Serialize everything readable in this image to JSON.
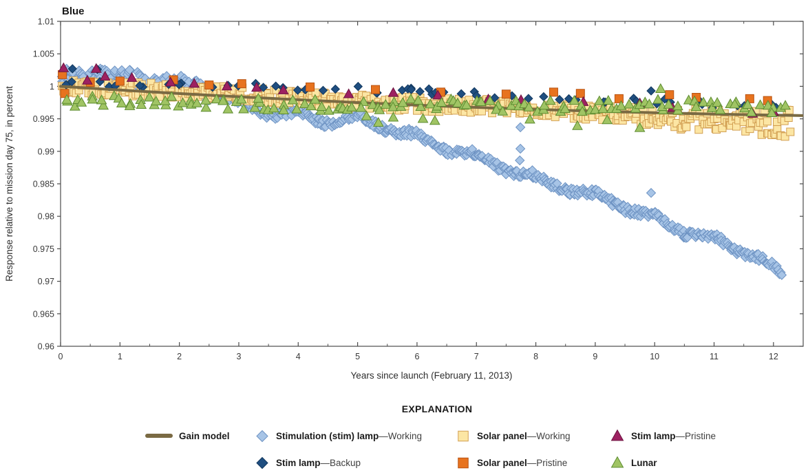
{
  "chart_data": {
    "type": "scatter",
    "title": "Blue",
    "xlabel": "Years since launch (February 11, 2013)",
    "ylabel": "Response relative to mission day 75, in percent",
    "xlim": [
      0,
      12.5
    ],
    "ylim": [
      0.96,
      1.01
    ],
    "x_major_ticks": [
      0,
      1,
      2,
      3,
      4,
      5,
      6,
      7,
      8,
      9,
      10,
      11,
      12
    ],
    "x_minor_ticks": [
      0.5,
      1.5,
      2.5,
      3.5,
      4.5,
      5.5,
      6.5,
      7.5,
      8.5,
      9.5,
      10.5,
      11.5
    ],
    "y_ticks": [
      0.96,
      0.965,
      0.97,
      0.975,
      0.98,
      0.985,
      0.99,
      0.995,
      1,
      1.005,
      1.01
    ],
    "y_tick_labels": [
      "0.96",
      "0.965",
      "0.97",
      "0.975",
      "0.98",
      "0.985",
      "0.99",
      "0.995",
      "1",
      "1.005",
      "1.01"
    ],
    "grid": false,
    "legend_title": "EXPLANATION",
    "legend_position": "bottom",
    "series": [
      {
        "key": "stim_working",
        "label_bold": "Stimulation (stim) lamp",
        "label_rest": "—Working",
        "marker": "diamond",
        "fill": "#a7c4e6",
        "stroke": "#6e93c3",
        "size": 13,
        "trend": [
          [
            0,
            1.0013
          ],
          [
            0.3,
            1.0016
          ],
          [
            0.6,
            1.0021
          ],
          [
            0.9,
            1.001
          ],
          [
            1.2,
            1.0014
          ],
          [
            1.5,
            1.0007
          ],
          [
            1.8,
            1.0004
          ],
          [
            2.1,
            1.0002
          ],
          [
            2.4,
            0.9997
          ],
          [
            2.7,
            0.9987
          ],
          [
            3,
            0.9974
          ],
          [
            3.5,
            0.9961
          ],
          [
            4,
            0.9955
          ],
          [
            4.4,
            0.9947
          ],
          [
            5,
            0.9951
          ],
          [
            5.5,
            0.9937
          ],
          [
            6,
            0.9921
          ],
          [
            6.5,
            0.9905
          ],
          [
            7,
            0.9891
          ],
          [
            7.7,
            0.9868
          ],
          [
            8.2,
            0.9852
          ],
          [
            8.8,
            0.9836
          ],
          [
            9.4,
            0.982
          ],
          [
            10,
            0.9796
          ],
          [
            10.5,
            0.9778
          ],
          [
            11.1,
            0.976
          ],
          [
            11.7,
            0.9741
          ],
          [
            12.15,
            0.9706
          ]
        ],
        "gen": {
          "n": 610,
          "t_range": [
            0.02,
            12.15
          ],
          "jitter": 0.0006,
          "wiggle": 0.0005,
          "jitter_early": [
            2.6,
            0.0006
          ]
        },
        "outliers": [
          [
            7.74,
            0.9937
          ],
          [
            7.74,
            0.9904
          ],
          [
            7.73,
            0.9886
          ],
          [
            9.94,
            0.9836
          ]
        ]
      },
      {
        "key": "solar_working",
        "label_bold": "Solar panel",
        "label_rest": "—Working",
        "marker": "square",
        "fill": "#fce6a4",
        "stroke": "#d29f52",
        "size": 11,
        "trend": [
          [
            0,
            0.9999
          ],
          [
            1,
            0.9996
          ],
          [
            2,
            0.9993
          ],
          [
            3,
            0.9988
          ],
          [
            4,
            0.9982
          ],
          [
            5,
            0.9976
          ],
          [
            6,
            0.9973
          ],
          [
            7,
            0.997
          ],
          [
            8,
            0.9966
          ],
          [
            9,
            0.9959
          ],
          [
            10,
            0.9952
          ],
          [
            11,
            0.9947
          ],
          [
            12.3,
            0.9942
          ]
        ],
        "gen": {
          "n": 500,
          "t_range": [
            0.02,
            12.3
          ],
          "jitter": 0.0011,
          "jitter_late": [
            9,
            0.00035
          ]
        }
      },
      {
        "key": "stim_backup",
        "label_bold": "Stim lamp",
        "label_rest": "—Backup",
        "marker": "diamond",
        "fill": "#1f4e80",
        "stroke": "#12385e",
        "size": 12,
        "trend": [
          [
            0,
            1.0006
          ],
          [
            1,
            1.0004
          ],
          [
            2,
            1.0002
          ],
          [
            3,
            1.0
          ],
          [
            4,
            0.9998
          ],
          [
            5,
            0.9995
          ],
          [
            6,
            0.9991
          ],
          [
            7,
            0.9988
          ],
          [
            8,
            0.9984
          ],
          [
            9,
            0.998
          ],
          [
            10,
            0.9977
          ],
          [
            11,
            0.9971
          ],
          [
            12.1,
            0.9967
          ]
        ],
        "gen": {
          "n": 52,
          "t_range": [
            0.05,
            12.1
          ],
          "jitter": 0.0005
        },
        "points": [
          [
            5.75,
            0.9994
          ],
          [
            5.9,
            0.9997
          ],
          [
            6.05,
            0.9992
          ],
          [
            6.2,
            0.9996
          ],
          [
            6.45,
            0.9991
          ]
        ],
        "outliers": [
          [
            0.2,
            1.0027
          ],
          [
            0.62,
            1.0026
          ],
          [
            9.94,
            0.9993
          ]
        ]
      },
      {
        "key": "solar_pristine",
        "label_bold": "Solar panel",
        "label_rest": "—Pristine",
        "marker": "square",
        "fill": "#e7731f",
        "stroke": "#b85312",
        "size": 12,
        "points": [
          [
            0.03,
            1.0018
          ],
          [
            0.07,
            0.9989
          ],
          [
            0.5,
            1.0006
          ],
          [
            1.0,
            1.0008
          ],
          [
            1.9,
            1.001
          ],
          [
            2.5,
            1.0002
          ],
          [
            3.05,
            1.0004
          ],
          [
            4.2,
            0.9999
          ],
          [
            5.3,
            0.9995
          ],
          [
            6.4,
            0.9991
          ],
          [
            7.5,
            0.9988
          ],
          [
            8.3,
            0.9991
          ],
          [
            8.75,
            0.9989
          ],
          [
            9.4,
            0.9981
          ],
          [
            10.25,
            0.9987
          ],
          [
            10.7,
            0.9983
          ],
          [
            11.6,
            0.9981
          ],
          [
            11.9,
            0.9978
          ]
        ]
      },
      {
        "key": "gain_model",
        "label_bold": "Gain model",
        "label_rest": "",
        "marker": "line",
        "color": "#7a6a43",
        "width": 4,
        "points": [
          [
            0,
            1.0
          ],
          [
            1,
            0.99943
          ],
          [
            2,
            0.99889
          ],
          [
            3,
            0.99839
          ],
          [
            4,
            0.99793
          ],
          [
            5,
            0.9975
          ],
          [
            6,
            0.99711
          ],
          [
            7,
            0.99676
          ],
          [
            8,
            0.99645
          ],
          [
            9,
            0.99617
          ],
          [
            10,
            0.99594
          ],
          [
            11,
            0.99573
          ],
          [
            12,
            0.99557
          ],
          [
            12.48,
            0.9955
          ]
        ]
      },
      {
        "key": "stim_pristine",
        "label_bold": "Stim lamp",
        "label_rest": "—Pristine",
        "marker": "triangle",
        "fill": "#9d2161",
        "stroke": "#6b123f",
        "size": 14,
        "points": [
          [
            0.05,
            1.0028
          ],
          [
            0.45,
            1.0009
          ],
          [
            0.6,
            1.0027
          ],
          [
            0.75,
            1.0015
          ],
          [
            1.2,
            1.0013
          ],
          [
            1.85,
            1.0006
          ],
          [
            2.25,
            1.0004
          ],
          [
            2.8,
            1.0
          ],
          [
            3.3,
            0.9998
          ],
          [
            3.75,
            0.9994
          ],
          [
            4.85,
            0.9988
          ],
          [
            5.6,
            0.999
          ],
          [
            6.35,
            0.9986
          ],
          [
            7.2,
            0.998
          ],
          [
            7.75,
            0.9979
          ],
          [
            8.8,
            0.9976
          ],
          [
            9.75,
            0.9974
          ],
          [
            10.3,
            0.9967
          ],
          [
            11.65,
            0.9958
          ],
          [
            12.0,
            0.9961
          ]
        ]
      },
      {
        "key": "lunar",
        "label_bold": "Lunar",
        "label_rest": "",
        "marker": "triangle",
        "fill": "#a0c464",
        "stroke": "#5d8c30",
        "size": 14,
        "trend": [
          [
            0,
            0.9976
          ],
          [
            1,
            0.9979
          ],
          [
            2,
            0.9976
          ],
          [
            3,
            0.9973
          ],
          [
            4,
            0.9971
          ],
          [
            5,
            0.9971
          ],
          [
            6,
            0.9972
          ],
          [
            7,
            0.9971
          ],
          [
            8,
            0.9969
          ],
          [
            9,
            0.997
          ],
          [
            10,
            0.9971
          ],
          [
            11,
            0.9969
          ],
          [
            12.2,
            0.9967
          ]
        ],
        "gen": {
          "n": 140,
          "t_range": [
            0.06,
            12.2
          ],
          "jitter": 0.0009
        },
        "outliers": [
          [
            5.15,
            0.9954
          ],
          [
            5.35,
            0.9944
          ],
          [
            5.6,
            0.9952
          ],
          [
            6.1,
            0.995
          ],
          [
            6.3,
            0.9947
          ],
          [
            7.9,
            0.9949
          ],
          [
            8.7,
            0.9939
          ],
          [
            9.2,
            0.9948
          ],
          [
            9.75,
            0.9936
          ],
          [
            10.1,
            0.9996
          ]
        ]
      }
    ]
  }
}
